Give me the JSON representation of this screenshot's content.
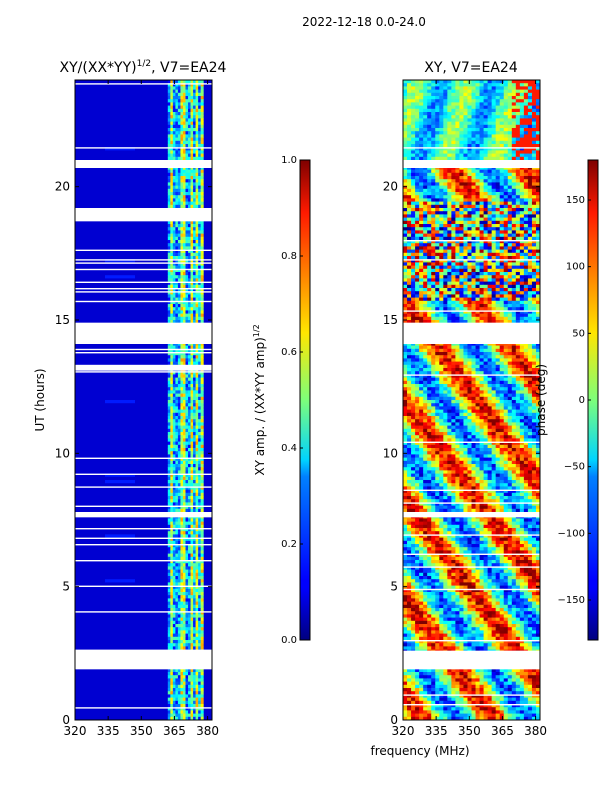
{
  "suptitle": "2022-12-18 0.0-24.0",
  "chart_data": [
    {
      "type": "heatmap",
      "title_main": "XY/(XX*YY)",
      "title_sup": "1/2",
      "title_rest": ", V7=EA24",
      "xlabel": "frequency (MHz)",
      "ylabel": "UT (hours)",
      "xlim": [
        320,
        382
      ],
      "ylim": [
        0,
        24
      ],
      "xticks": [
        "320",
        "335",
        "350",
        "365",
        "380"
      ],
      "yticks": [
        "0",
        "5",
        "10",
        "15",
        "20"
      ],
      "colorbar": {
        "label_main": "XY amp. / (XX*YY amp)",
        "label_sup": "1/2",
        "range": [
          0.0,
          1.0
        ],
        "ticks": [
          "0.0",
          "0.2",
          "0.4",
          "0.6",
          "0.8",
          "1.0"
        ]
      },
      "bright_band_mhz": [
        362,
        378
      ],
      "gaps_hours": [
        [
          2.6,
          1.9
        ],
        [
          14.9,
          14.1
        ],
        [
          19.2,
          18.7
        ],
        [
          21.0,
          20.7
        ],
        [
          7.8,
          7.6
        ],
        [
          13.3,
          13.1
        ]
      ]
    },
    {
      "type": "heatmap",
      "title_main": "XY, V7=EA24",
      "xlim": [
        320,
        382
      ],
      "ylim": [
        0,
        24
      ],
      "xticks": [
        "320",
        "335",
        "350",
        "365",
        "380"
      ],
      "yticks": [
        "0",
        "5",
        "10",
        "15",
        "20"
      ],
      "colorbar": {
        "label_main": "phase (deg)",
        "range": [
          -180,
          180
        ],
        "ticks": [
          "-150",
          "-100",
          "-50",
          "0",
          "50",
          "100",
          "150"
        ]
      },
      "gaps_hours": [
        [
          2.6,
          1.9
        ],
        [
          14.9,
          14.1
        ],
        [
          21.0,
          20.7
        ],
        [
          7.8,
          7.6
        ]
      ]
    }
  ]
}
